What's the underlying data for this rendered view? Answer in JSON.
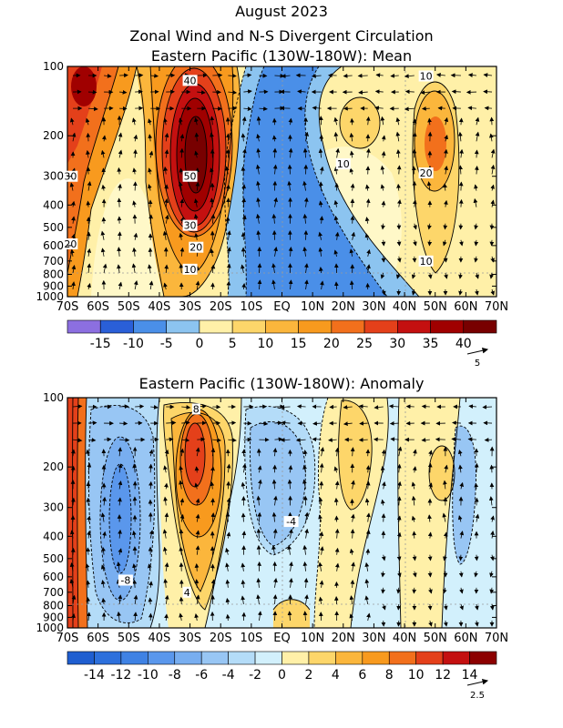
{
  "titles": {
    "main": "August 2023",
    "line2": "Zonal Wind and N-S Divergent Circulation",
    "panel1": "Eastern Pacific (130W-180W): Mean",
    "panel2": "Eastern Pacific (130W-180W): Anomaly"
  },
  "chart_data": [
    {
      "type": "heatmap",
      "title": "Eastern Pacific (130W-180W): Mean",
      "x_ticks": [
        "70S",
        "60S",
        "50S",
        "40S",
        "30S",
        "20S",
        "10S",
        "EQ",
        "10N",
        "20N",
        "30N",
        "40N",
        "50N",
        "60N",
        "70N"
      ],
      "x_range": [
        -70,
        70
      ],
      "y_ticks": [
        "100",
        "200",
        "300",
        "400",
        "500",
        "600",
        "700",
        "800",
        "900",
        "1000"
      ],
      "y_range": [
        1000,
        100
      ],
      "y_scale": "log",
      "grid": true,
      "colorbar_labels": [
        "-15",
        "-10",
        "-5",
        "0",
        "5",
        "10",
        "15",
        "20",
        "25",
        "30",
        "35",
        "40"
      ],
      "colorbar_colors": [
        "#8c6fe0",
        "#2a5fd8",
        "#4a8fe8",
        "#8cc4f0",
        "#fff0a8",
        "#fdd66a",
        "#fbb63c",
        "#f89a1e",
        "#f2701c",
        "#e4401a",
        "#c41010",
        "#a00000",
        "#780000"
      ],
      "contour_labels": [
        {
          "text": "40",
          "lat": -30,
          "p": 115
        },
        {
          "text": "50",
          "lat": -30,
          "p": 300
        },
        {
          "text": "30",
          "lat": -30,
          "p": 490
        },
        {
          "text": "20",
          "lat": -28,
          "p": 610
        },
        {
          "text": "10",
          "lat": -30,
          "p": 760
        },
        {
          "text": "30",
          "lat": -69,
          "p": 300
        },
        {
          "text": "20",
          "lat": -69,
          "p": 590
        },
        {
          "text": "10",
          "lat": 20,
          "p": 265
        },
        {
          "text": "10",
          "lat": 47,
          "p": 110
        },
        {
          "text": "20",
          "lat": 47,
          "p": 290
        },
        {
          "text": "10",
          "lat": 47,
          "p": 700
        }
      ],
      "vector_ref": "5"
    },
    {
      "type": "heatmap",
      "title": "Eastern Pacific (130W-180W): Anomaly",
      "x_ticks": [
        "70S",
        "60S",
        "50S",
        "40S",
        "30S",
        "20S",
        "10S",
        "EQ",
        "10N",
        "20N",
        "30N",
        "40N",
        "50N",
        "60N",
        "70N"
      ],
      "x_range": [
        -70,
        70
      ],
      "y_ticks": [
        "100",
        "200",
        "300",
        "400",
        "500",
        "600",
        "700",
        "800",
        "900",
        "1000"
      ],
      "y_range": [
        1000,
        100
      ],
      "y_scale": "log",
      "grid": true,
      "colorbar_labels": [
        "-14",
        "-12",
        "-10",
        "-8",
        "-6",
        "-4",
        "-2",
        "0",
        "2",
        "4",
        "6",
        "8",
        "10",
        "12",
        "14"
      ],
      "colorbar_colors": [
        "#1f5ed0",
        "#2d70dc",
        "#3f82e4",
        "#5a97ec",
        "#78aef0",
        "#98c6f4",
        "#b4dcf8",
        "#d2f0fc",
        "#fff0a8",
        "#fdd66a",
        "#fbb63c",
        "#f89a1e",
        "#f2701c",
        "#e4401a",
        "#c41010",
        "#8c0000"
      ],
      "contour_labels": [
        {
          "text": "8",
          "lat": -28,
          "p": 112
        },
        {
          "text": "-4",
          "lat": 3,
          "p": 345
        },
        {
          "text": "-8",
          "lat": -51,
          "p": 620
        },
        {
          "text": "4",
          "lat": -31,
          "p": 700
        }
      ],
      "vector_ref": "2.5"
    }
  ]
}
